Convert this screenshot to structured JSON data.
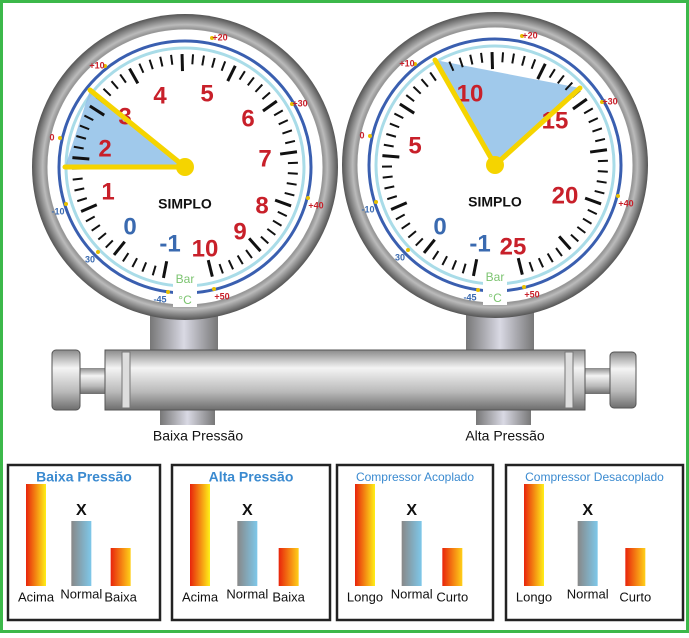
{
  "gauges": [
    {
      "label": "Baixa Pressão",
      "title": "SIMPLO",
      "unit": "Bar",
      "temp_unit": "°C",
      "pressure_scale": [
        "-1",
        "0",
        "1",
        "2",
        "3",
        "4",
        "5",
        "6",
        "7",
        "8",
        "9",
        "10"
      ],
      "temp_scale": [
        "-45",
        "30",
        "-10",
        "0",
        "+10",
        "+20",
        "+30",
        "+40",
        "+50"
      ]
    },
    {
      "label": "Alta Pressão",
      "title": "SIMPLO",
      "unit": "Bar",
      "temp_unit": "°C",
      "pressure_scale": [
        "-1",
        "0",
        "5",
        "10",
        "15",
        "20",
        "25"
      ],
      "temp_scale": [
        "-45",
        "30",
        "-10",
        "0",
        "+10",
        "+20",
        "+30",
        "+40",
        "+50"
      ]
    }
  ],
  "panels": [
    {
      "title": "Baixa Pressão",
      "marker": "X",
      "bars": [
        "Acima",
        "Normal",
        "Baixa"
      ]
    },
    {
      "title": "Alta Pressão",
      "marker": "X",
      "bars": [
        "Acima",
        "Normal",
        "Baixa"
      ]
    },
    {
      "title": "Compressor Acoplado",
      "marker": "X",
      "bars": [
        "Longo",
        "Normal",
        "Curto"
      ]
    },
    {
      "title": "Compressor Desacoplado",
      "marker": "X",
      "bars": [
        "Longo",
        "Normal",
        "Curto"
      ]
    }
  ]
}
